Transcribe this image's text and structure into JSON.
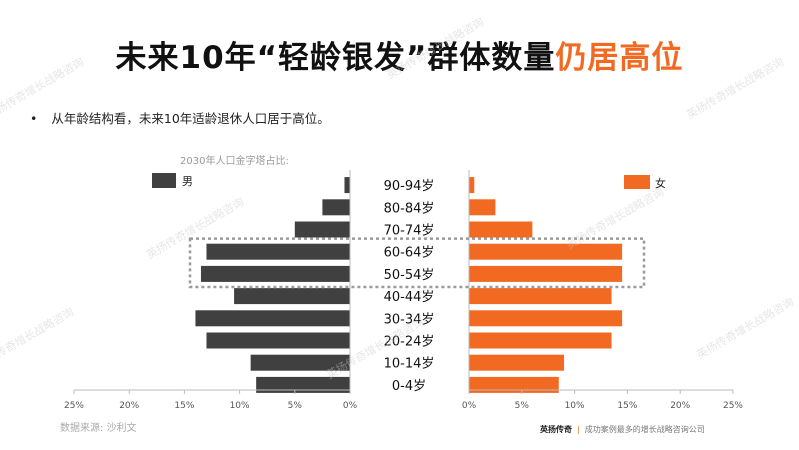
{
  "title": {
    "main": "未来10年“轻龄银发”群体数量",
    "highlight": "仍居高位"
  },
  "bullet": "从年龄结构看，未来10年适龄退休人口居于高位。",
  "pyramid_caption": "2030年人口金字塔占比:",
  "source": "数据来源: 沙利文",
  "footer": {
    "brand": "英扬传奇",
    "tagline": "成功案例最多的增长战略咨询公司"
  },
  "watermark": "英扬传奇增长战略咨询",
  "colors": {
    "male": "#404040",
    "female": "#f26a21",
    "accent": "#f26a21"
  },
  "chart_data": {
    "type": "bar",
    "subtype": "population-pyramid",
    "categories": [
      "90-94岁",
      "80-84岁",
      "70-74岁",
      "60-64岁",
      "50-54岁",
      "40-44岁",
      "30-34岁",
      "20-24岁",
      "10-14岁",
      "0-4岁"
    ],
    "series": [
      {
        "name": "男",
        "values": [
          0.5,
          2.5,
          5,
          13,
          13.5,
          10.5,
          14,
          13,
          9,
          8.5
        ]
      },
      {
        "name": "女",
        "values": [
          0.5,
          2.5,
          6,
          14.5,
          14.5,
          13.5,
          14.5,
          13.5,
          9,
          8.5
        ]
      }
    ],
    "xlim": [
      0,
      25
    ],
    "ticks": [
      "25%",
      "20%",
      "15%",
      "10%",
      "5%",
      "0%"
    ],
    "ticks_right": [
      "0%",
      "5%",
      "10%",
      "15%",
      "20%",
      "25%"
    ],
    "highlight": [
      "60-64岁",
      "50-54岁"
    ],
    "legend": [
      "男",
      "女"
    ],
    "grid": false
  }
}
